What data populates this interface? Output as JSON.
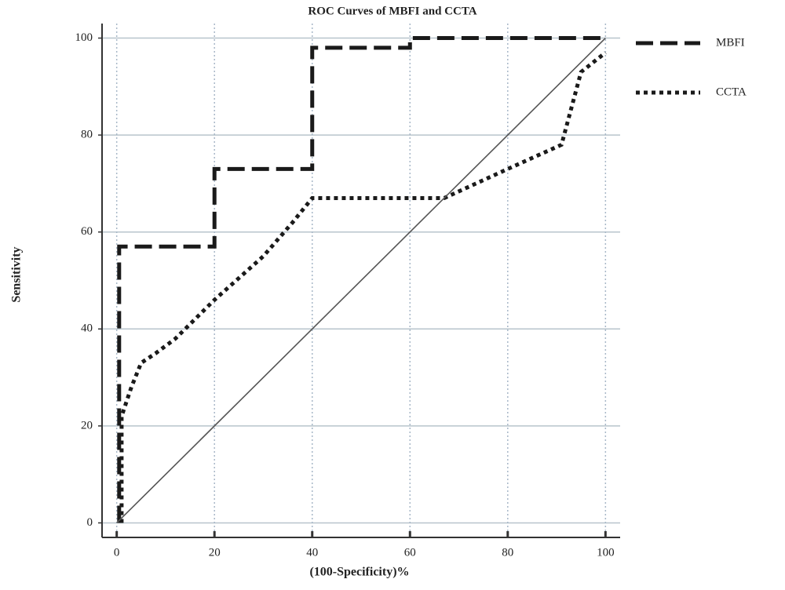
{
  "chart_data": {
    "type": "line",
    "title": "ROC Curves of MBFI and CCTA",
    "xlabel": "(100-Specificity)%",
    "ylabel": "Sensitivity",
    "xlim": [
      -3,
      103
    ],
    "ylim": [
      -3,
      103
    ],
    "xticks": [
      0,
      20,
      40,
      60,
      80,
      100
    ],
    "yticks": [
      0,
      20,
      40,
      60,
      80,
      100
    ],
    "grid": true,
    "legend": "right",
    "series": [
      {
        "name": "MBFI",
        "color": "#1a1a1a",
        "style": "dashed",
        "x": [
          0.5,
          0.5,
          20,
          20,
          40,
          40,
          60,
          60,
          100
        ],
        "values": [
          0,
          57,
          57,
          73,
          73,
          98,
          98,
          100,
          100
        ]
      },
      {
        "name": "CCTA",
        "color": "#1a1a1a",
        "style": "dotted",
        "x": [
          1,
          1,
          3,
          5,
          8,
          12,
          20,
          30,
          36,
          40,
          67,
          80,
          91,
          95,
          100
        ],
        "values": [
          0,
          22,
          28,
          33,
          35,
          38,
          46,
          55,
          62,
          67,
          67,
          73,
          78,
          93,
          97
        ]
      },
      {
        "color": "#555555",
        "style": "solid",
        "x": [
          0,
          100
        ],
        "values": [
          0,
          100
        ]
      }
    ]
  }
}
